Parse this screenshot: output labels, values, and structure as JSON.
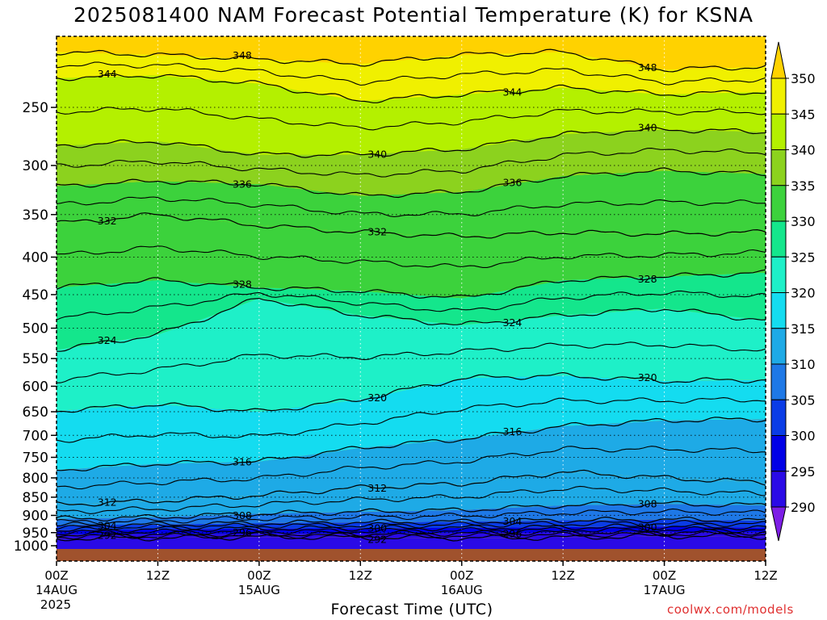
{
  "title": "2025081400 NAM Forecast Potential Temperature (K) for KSNA",
  "xlabel": "Forecast Time (UTC)",
  "credit": "coolwx.com/models",
  "chart_data": {
    "type": "contour",
    "field": "Potential Temperature (K)",
    "model": "NAM",
    "station": "KSNA",
    "run": "2025081400",
    "y_axis": {
      "label": "",
      "scale": "log",
      "inverted": true,
      "range": [
        1000,
        200
      ],
      "ticks": [
        250,
        300,
        350,
        400,
        450,
        500,
        550,
        600,
        650,
        700,
        750,
        800,
        850,
        900,
        950,
        1000
      ]
    },
    "x_axis": {
      "label": "Forecast Time (UTC)",
      "range_hours": [
        0,
        84
      ],
      "ticks": [
        {
          "hour": 0,
          "line1": "00Z",
          "line2": "14AUG",
          "line3": "2025"
        },
        {
          "hour": 12,
          "line1": "12Z",
          "line2": "",
          "line3": ""
        },
        {
          "hour": 24,
          "line1": "00Z",
          "line2": "15AUG",
          "line3": ""
        },
        {
          "hour": 36,
          "line1": "12Z",
          "line2": "",
          "line3": ""
        },
        {
          "hour": 48,
          "line1": "00Z",
          "line2": "16AUG",
          "line3": ""
        },
        {
          "hour": 60,
          "line1": "12Z",
          "line2": "",
          "line3": ""
        },
        {
          "hour": 72,
          "line1": "00Z",
          "line2": "17AUG",
          "line3": ""
        },
        {
          "hour": 84,
          "line1": "12Z",
          "line2": "",
          "line3": ""
        }
      ]
    },
    "grid": "dotted",
    "colorbar": {
      "position": "right",
      "levels": [
        290,
        295,
        300,
        305,
        310,
        315,
        320,
        325,
        330,
        335,
        340,
        345,
        350
      ],
      "colors": [
        "#7d1ee6",
        "#2a0ae6",
        "#0000e6",
        "#0a3ce6",
        "#1e78e6",
        "#1eaae6",
        "#14dcf0",
        "#1ef0c8",
        "#14e68c",
        "#3cd23c",
        "#8cd21e",
        "#b4f000",
        "#f0f000",
        "#ffd200"
      ]
    },
    "ground_color": "#a0522d",
    "isentropes": [
      {
        "theta": 292,
        "p": [
          [
            0,
            968
          ],
          [
            12,
            966
          ],
          [
            24,
            963
          ],
          [
            36,
            965
          ],
          [
            48,
            966
          ],
          [
            60,
            965
          ],
          [
            72,
            960
          ],
          [
            84,
            962
          ]
        ]
      },
      {
        "theta": 296,
        "p": [
          [
            0,
            956
          ],
          [
            12,
            955
          ],
          [
            24,
            954
          ],
          [
            36,
            953
          ],
          [
            48,
            952
          ],
          [
            60,
            950
          ],
          [
            72,
            948
          ],
          [
            84,
            950
          ]
        ]
      },
      {
        "theta": 300,
        "p": [
          [
            0,
            943
          ],
          [
            12,
            940
          ],
          [
            24,
            938
          ],
          [
            36,
            937
          ],
          [
            48,
            936
          ],
          [
            60,
            934
          ],
          [
            72,
            932
          ],
          [
            84,
            935
          ]
        ]
      },
      {
        "theta": 304,
        "p": [
          [
            0,
            928
          ],
          [
            12,
            926
          ],
          [
            24,
            922
          ],
          [
            36,
            920
          ],
          [
            48,
            918
          ],
          [
            60,
            914
          ],
          [
            72,
            912
          ],
          [
            84,
            915
          ]
        ]
      },
      {
        "theta": 308,
        "p": [
          [
            0,
            910
          ],
          [
            12,
            905
          ],
          [
            24,
            895
          ],
          [
            36,
            890
          ],
          [
            48,
            885
          ],
          [
            60,
            872
          ],
          [
            72,
            868
          ],
          [
            84,
            872
          ]
        ]
      },
      {
        "theta": 312,
        "p": [
          [
            0,
            870
          ],
          [
            12,
            860
          ],
          [
            24,
            845
          ],
          [
            36,
            825
          ],
          [
            48,
            815
          ],
          [
            60,
            785
          ],
          [
            72,
            800
          ],
          [
            84,
            812
          ]
        ]
      },
      {
        "theta": 316,
        "p": [
          [
            0,
            780
          ],
          [
            12,
            765
          ],
          [
            24,
            760
          ],
          [
            36,
            728
          ],
          [
            48,
            708
          ],
          [
            60,
            680
          ],
          [
            72,
            668
          ],
          [
            84,
            665
          ]
        ]
      },
      {
        "theta": 320,
        "p": [
          [
            0,
            648
          ],
          [
            12,
            635
          ],
          [
            24,
            650
          ],
          [
            36,
            625
          ],
          [
            48,
            585
          ],
          [
            60,
            580
          ],
          [
            72,
            590
          ],
          [
            84,
            588
          ]
        ]
      },
      {
        "theta": 324,
        "p": [
          [
            0,
            535
          ],
          [
            12,
            510
          ],
          [
            24,
            455
          ],
          [
            36,
            480
          ],
          [
            48,
            495
          ],
          [
            60,
            480
          ],
          [
            72,
            470
          ],
          [
            84,
            488
          ]
        ]
      },
      {
        "theta": 328,
        "p": [
          [
            0,
            440
          ],
          [
            12,
            430
          ],
          [
            24,
            440
          ],
          [
            36,
            445
          ],
          [
            48,
            455
          ],
          [
            60,
            430
          ],
          [
            72,
            425
          ],
          [
            84,
            420
          ]
        ]
      },
      {
        "theta": 332,
        "p": [
          [
            0,
            360
          ],
          [
            12,
            350
          ],
          [
            24,
            362
          ],
          [
            36,
            370
          ],
          [
            48,
            375
          ],
          [
            60,
            370
          ],
          [
            72,
            372
          ],
          [
            84,
            370
          ]
        ]
      },
      {
        "theta": 336,
        "p": [
          [
            0,
            320
          ],
          [
            12,
            315
          ],
          [
            24,
            318
          ],
          [
            36,
            330
          ],
          [
            48,
            326
          ],
          [
            60,
            310
          ],
          [
            72,
            305
          ],
          [
            84,
            308
          ]
        ]
      },
      {
        "theta": 340,
        "p": [
          [
            0,
            282
          ],
          [
            12,
            278
          ],
          [
            24,
            290
          ],
          [
            36,
            290
          ],
          [
            48,
            285
          ],
          [
            60,
            272
          ],
          [
            72,
            268
          ],
          [
            84,
            270
          ]
        ]
      },
      {
        "theta": 344,
        "p": [
          [
            0,
            228
          ],
          [
            12,
            226
          ],
          [
            24,
            232
          ],
          [
            36,
            245
          ],
          [
            48,
            240
          ],
          [
            60,
            235
          ],
          [
            72,
            240
          ],
          [
            84,
            238
          ]
        ]
      },
      {
        "theta": 348,
        "p": [
          [
            0,
            210
          ],
          [
            12,
            212
          ],
          [
            24,
            215
          ],
          [
            36,
            218
          ],
          [
            48,
            212
          ],
          [
            60,
            210
          ],
          [
            72,
            222
          ],
          [
            84,
            220
          ]
        ]
      }
    ],
    "contour_labels": [
      "292",
      "296",
      "300",
      "304",
      "308",
      "312",
      "316",
      "320",
      "324",
      "328",
      "332",
      "336",
      "340",
      "344",
      "348"
    ]
  }
}
